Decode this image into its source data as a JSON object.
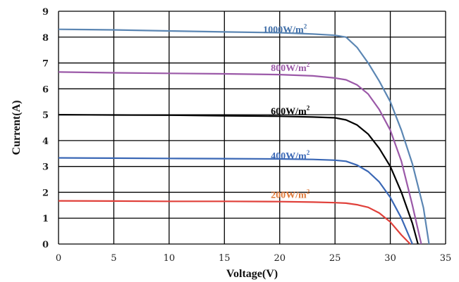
{
  "chart_data": {
    "type": "line",
    "xlabel": "Voltage(V)",
    "ylabel": "Current(A)",
    "xlim": [
      0,
      35
    ],
    "ylim": [
      0,
      9
    ],
    "xticks": [
      0,
      5,
      10,
      15,
      20,
      25,
      30,
      35
    ],
    "yticks": [
      0,
      1,
      2,
      3,
      4,
      5,
      6,
      7,
      8,
      9
    ],
    "grid": true,
    "series": [
      {
        "name": "1000W/m²",
        "label_base": "1000W/m",
        "label_sup": "2",
        "color": "#5b86b3",
        "label_color": "#3f6ea8",
        "label_at": [
          18.5,
          8.3
        ],
        "x": [
          0,
          5,
          10,
          15,
          20,
          23,
          25,
          26,
          27,
          28,
          29,
          30,
          31,
          32,
          33,
          33.5
        ],
        "y": [
          8.3,
          8.28,
          8.24,
          8.2,
          8.17,
          8.12,
          8.07,
          8.0,
          7.6,
          7.0,
          6.3,
          5.5,
          4.4,
          3.1,
          1.4,
          0
        ]
      },
      {
        "name": "800W/m²",
        "label_base": "800W/m",
        "label_sup": "2",
        "color": "#9b59a8",
        "label_color": "#9b59a8",
        "label_at": [
          19.2,
          6.82
        ],
        "x": [
          0,
          5,
          10,
          15,
          20,
          23,
          25,
          26,
          27,
          28,
          29,
          30,
          31,
          32,
          32.8
        ],
        "y": [
          6.65,
          6.62,
          6.6,
          6.58,
          6.55,
          6.5,
          6.42,
          6.35,
          6.15,
          5.8,
          5.2,
          4.4,
          3.2,
          1.5,
          0
        ]
      },
      {
        "name": "600W/m²",
        "label_base": "600W/m",
        "label_sup": "2",
        "color": "#000000",
        "label_color": "#000000",
        "label_at": [
          19.2,
          5.15
        ],
        "x": [
          0,
          5,
          10,
          15,
          20,
          23,
          25,
          26,
          27,
          28,
          29,
          30,
          31,
          32,
          32.5
        ],
        "y": [
          5.0,
          4.99,
          4.98,
          4.96,
          4.94,
          4.91,
          4.88,
          4.8,
          4.6,
          4.25,
          3.7,
          3.0,
          2.0,
          0.8,
          0
        ]
      },
      {
        "name": "400W/m²",
        "label_base": "400W/m",
        "label_sup": "2",
        "color": "#3a67b5",
        "label_color": "#3a67b5",
        "label_at": [
          19.2,
          3.43
        ],
        "x": [
          0,
          5,
          10,
          15,
          20,
          23,
          25,
          26,
          27,
          28,
          29,
          30,
          31,
          32
        ],
        "y": [
          3.33,
          3.32,
          3.31,
          3.3,
          3.29,
          3.27,
          3.24,
          3.2,
          3.05,
          2.8,
          2.4,
          1.8,
          1.0,
          0
        ]
      },
      {
        "name": "200W/m²",
        "label_base": "200W/m",
        "label_sup": "2",
        "color": "#e0403a",
        "label_color": "#e07a3a",
        "label_at": [
          19.2,
          1.92
        ],
        "x": [
          0,
          5,
          10,
          15,
          20,
          23,
          25,
          26,
          27,
          28,
          29,
          30,
          31,
          31.8
        ],
        "y": [
          1.67,
          1.66,
          1.65,
          1.65,
          1.64,
          1.62,
          1.6,
          1.58,
          1.52,
          1.42,
          1.2,
          0.85,
          0.35,
          0
        ]
      }
    ]
  }
}
